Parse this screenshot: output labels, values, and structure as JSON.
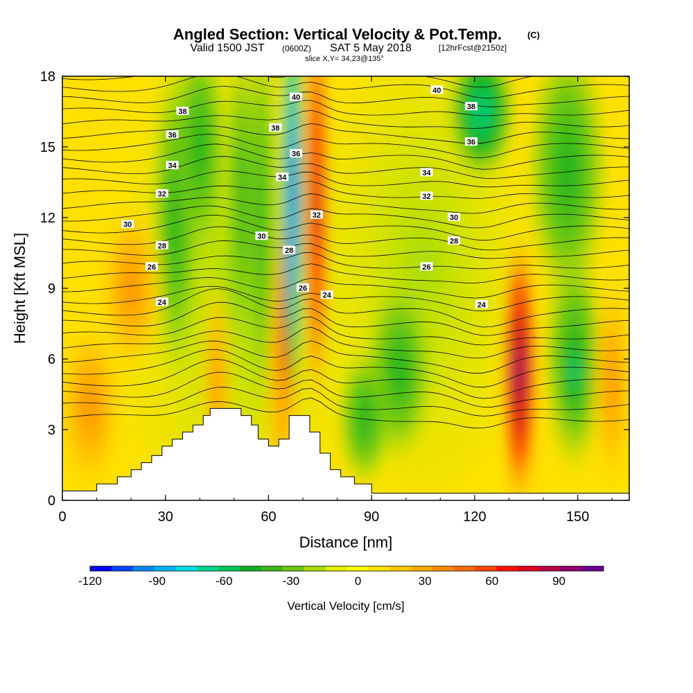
{
  "chart_data": {
    "type": "heatmap",
    "title": {
      "main": "Angled Section: Vertical Velocity & Pot.Temp.",
      "unit": "(C)"
    },
    "subtitle": {
      "prefix": "Valid 1500 JST",
      "zulu": "(0600Z)",
      "date": "SAT 5 May 2018",
      "forecast": "[12hrFcst@2150z]"
    },
    "slice_info": "slice X,Y= 34,23@135°",
    "xlabel": "Distance [nm]",
    "ylabel": "Height [Kft MSL]",
    "xlim": [
      0,
      165
    ],
    "ylim": [
      0,
      18
    ],
    "xticks": [
      "0",
      "30",
      "60",
      "90",
      "120",
      "150"
    ],
    "yticks": [
      "0",
      "3",
      "6",
      "9",
      "12",
      "15",
      "18"
    ],
    "colorbar": {
      "label": "Vertical Velocity [cm/s]",
      "ticks": [
        "-120",
        "-90",
        "-60",
        "-30",
        "0",
        "30",
        "60",
        "90"
      ],
      "tick_values": [
        -120,
        -90,
        -60,
        -30,
        0,
        30,
        60,
        90
      ],
      "range": [
        -120,
        110
      ],
      "colors": [
        "#0000ff",
        "#0044ff",
        "#0088ff",
        "#00b4ff",
        "#00e0e0",
        "#00d890",
        "#00c858",
        "#10b020",
        "#40b818",
        "#70c810",
        "#a8dc08",
        "#e0f000",
        "#ffff00",
        "#ffe400",
        "#ffc800",
        "#ffac00",
        "#ff8c00",
        "#ff6c00",
        "#ff4400",
        "#ff1000",
        "#e00020",
        "#b80048",
        "#900070",
        "#680090"
      ]
    },
    "terrain": [
      [
        0,
        0.4
      ],
      [
        10,
        0.4
      ],
      [
        10,
        0.7
      ],
      [
        16,
        0.7
      ],
      [
        16,
        1.0
      ],
      [
        20,
        1.0
      ],
      [
        20,
        1.3
      ],
      [
        23,
        1.3
      ],
      [
        23,
        1.6
      ],
      [
        26,
        1.6
      ],
      [
        26,
        1.9
      ],
      [
        29,
        1.9
      ],
      [
        29,
        2.3
      ],
      [
        32,
        2.3
      ],
      [
        32,
        2.6
      ],
      [
        35,
        2.6
      ],
      [
        35,
        2.9
      ],
      [
        38,
        2.9
      ],
      [
        38,
        3.2
      ],
      [
        41,
        3.2
      ],
      [
        41,
        3.6
      ],
      [
        43,
        3.6
      ],
      [
        43,
        3.9
      ],
      [
        52,
        3.9
      ],
      [
        52,
        3.6
      ],
      [
        55,
        3.6
      ],
      [
        55,
        3.2
      ],
      [
        57,
        3.2
      ],
      [
        57,
        2.6
      ],
      [
        60,
        2.6
      ],
      [
        60,
        2.3
      ],
      [
        63,
        2.3
      ],
      [
        63,
        2.6
      ],
      [
        66,
        2.6
      ],
      [
        66,
        3.6
      ],
      [
        72,
        3.6
      ],
      [
        72,
        2.9
      ],
      [
        75,
        2.9
      ],
      [
        75,
        2.0
      ],
      [
        78,
        2.0
      ],
      [
        78,
        1.3
      ],
      [
        81,
        1.3
      ],
      [
        81,
        1.0
      ],
      [
        85,
        1.0
      ],
      [
        85,
        0.7
      ],
      [
        90,
        0.7
      ],
      [
        90,
        0.3
      ],
      [
        165,
        0.3
      ]
    ],
    "isotherm_labels": [
      {
        "text": "40",
        "x": 68,
        "y": 17.1
      },
      {
        "text": "40",
        "x": 109,
        "y": 17.4
      },
      {
        "text": "38",
        "x": 35,
        "y": 16.5
      },
      {
        "text": "38",
        "x": 62,
        "y": 15.8
      },
      {
        "text": "38",
        "x": 119,
        "y": 16.7
      },
      {
        "text": "36",
        "x": 32,
        "y": 15.5
      },
      {
        "text": "36",
        "x": 68,
        "y": 14.7
      },
      {
        "text": "36",
        "x": 119,
        "y": 15.2
      },
      {
        "text": "34",
        "x": 32,
        "y": 14.2
      },
      {
        "text": "34",
        "x": 64,
        "y": 13.7
      },
      {
        "text": "34",
        "x": 106,
        "y": 13.9
      },
      {
        "text": "32",
        "x": 29,
        "y": 13.0
      },
      {
        "text": "32",
        "x": 74,
        "y": 12.1
      },
      {
        "text": "32",
        "x": 106,
        "y": 12.9
      },
      {
        "text": "30",
        "x": 19,
        "y": 11.7
      },
      {
        "text": "30",
        "x": 58,
        "y": 11.2
      },
      {
        "text": "30",
        "x": 114,
        "y": 12.0
      },
      {
        "text": "28",
        "x": 29,
        "y": 10.8
      },
      {
        "text": "28",
        "x": 66,
        "y": 10.6
      },
      {
        "text": "28",
        "x": 114,
        "y": 11.0
      },
      {
        "text": "26",
        "x": 26,
        "y": 9.9
      },
      {
        "text": "26",
        "x": 70,
        "y": 9.0
      },
      {
        "text": "26",
        "x": 106,
        "y": 9.9
      },
      {
        "text": "24",
        "x": 29,
        "y": 8.4
      },
      {
        "text": "24",
        "x": 77,
        "y": 8.7
      },
      {
        "text": "24",
        "x": 122,
        "y": 8.3
      }
    ]
  }
}
